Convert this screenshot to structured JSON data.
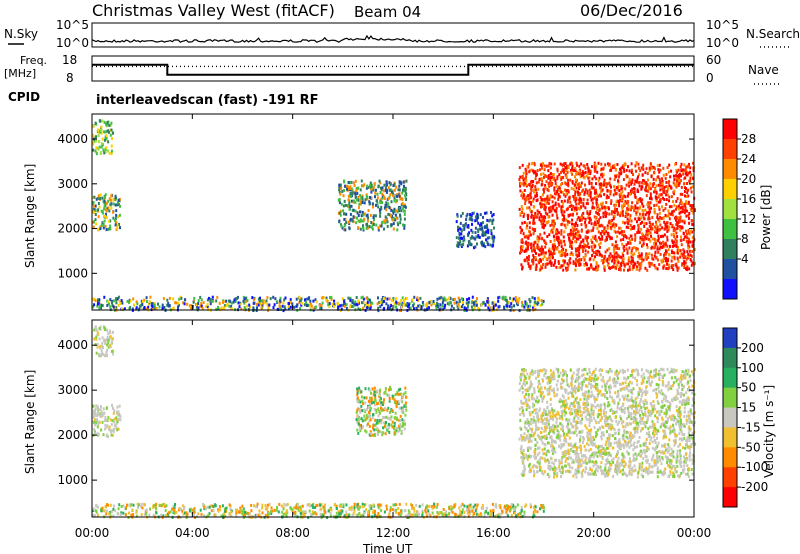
{
  "header": {
    "site": "Christmas Valley West (fitACF)",
    "beam": "Beam 04",
    "date": "06/Dec/2016"
  },
  "noise_panel": {
    "left_label": "N.Sky",
    "right_label": "N.Search",
    "left_ticks": [
      "10^5",
      "10^0"
    ],
    "right_ticks": [
      "10^5",
      "10^0"
    ]
  },
  "freq_panel": {
    "left_label_line1": "Freq.",
    "left_label_line2": "[MHz]",
    "right_label": "Nave",
    "left_ticks": [
      "18",
      "8"
    ],
    "right_ticks": [
      "60",
      "0"
    ],
    "frequency_steps": [
      {
        "start_hour": 0,
        "end_hour": 3,
        "freq_mhz": 14.5
      },
      {
        "start_hour": 3,
        "end_hour": 15,
        "freq_mhz": 10.5
      },
      {
        "start_hour": 15,
        "end_hour": 24,
        "freq_mhz": 14.5
      }
    ],
    "nave_level": 35
  },
  "cpid": {
    "label": "CPID",
    "text": "interleavedscan (fast) -191 RF"
  },
  "x_axis": {
    "ticks": [
      "00:00",
      "04:00",
      "08:00",
      "12:00",
      "16:00",
      "20:00",
      "00:00"
    ],
    "label": "Time UT"
  },
  "chart_data": [
    {
      "type": "heatmap",
      "name": "power",
      "ylabel": "Slant Range [km]",
      "yticks": [
        "4000",
        "3000",
        "2000",
        "1000"
      ],
      "xlim_hours": [
        0,
        24
      ],
      "ylim_km": [
        180,
        4560
      ],
      "colorbar_label": "Power [dB]",
      "colorbar_ticks": [
        "28",
        "24",
        "20",
        "16",
        "12",
        "8",
        "4"
      ],
      "colorbar_colors": [
        "#ff0000",
        "#ff4000",
        "#ff8c00",
        "#ffd000",
        "#a0e040",
        "#40c040",
        "#308060",
        "#2050a0",
        "#1010ff"
      ],
      "regions": [
        {
          "t": [
            0.0,
            0.8
          ],
          "r": [
            3700,
            4450
          ],
          "level": "mid"
        },
        {
          "t": [
            0.0,
            1.1
          ],
          "r": [
            2000,
            2800
          ],
          "level": "mid-high"
        },
        {
          "t": [
            9.8,
            12.5
          ],
          "r": [
            2000,
            3100
          ],
          "level": "low-mid"
        },
        {
          "t": [
            14.5,
            16.0
          ],
          "r": [
            1600,
            2400
          ],
          "level": "low"
        },
        {
          "t": [
            0.0,
            18.0
          ],
          "r": [
            200,
            500
          ],
          "level": "mixed"
        },
        {
          "t": [
            17.0,
            24.0
          ],
          "r": [
            1100,
            3500
          ],
          "level": "high"
        }
      ]
    },
    {
      "type": "heatmap",
      "name": "velocity",
      "ylabel": "Slant Range [km]",
      "yticks": [
        "4000",
        "3000",
        "2000",
        "1000"
      ],
      "xlim_hours": [
        0,
        24
      ],
      "ylim_km": [
        180,
        4560
      ],
      "colorbar_label": "Velocity [m s⁻¹]",
      "colorbar_ticks": [
        "200",
        "100",
        "50",
        "15",
        "-15",
        "-50",
        "-100",
        "-200"
      ],
      "colorbar_colors": [
        "#2040c0",
        "#2e8a5a",
        "#28b060",
        "#80d040",
        "#c8c8c0",
        "#f0c030",
        "#ff8c00",
        "#ff4000",
        "#ff0000"
      ],
      "regions": [
        {
          "t": [
            0.0,
            0.8
          ],
          "r": [
            3800,
            4450
          ],
          "level": "ground"
        },
        {
          "t": [
            0.0,
            1.1
          ],
          "r": [
            2000,
            2700
          ],
          "level": "ground"
        },
        {
          "t": [
            10.5,
            12.5
          ],
          "r": [
            2000,
            3100
          ],
          "level": "positive"
        },
        {
          "t": [
            0.0,
            18.0
          ],
          "r": [
            200,
            500
          ],
          "level": "mixed"
        },
        {
          "t": [
            17.0,
            24.0
          ],
          "r": [
            1100,
            3500
          ],
          "level": "ground"
        }
      ]
    }
  ]
}
